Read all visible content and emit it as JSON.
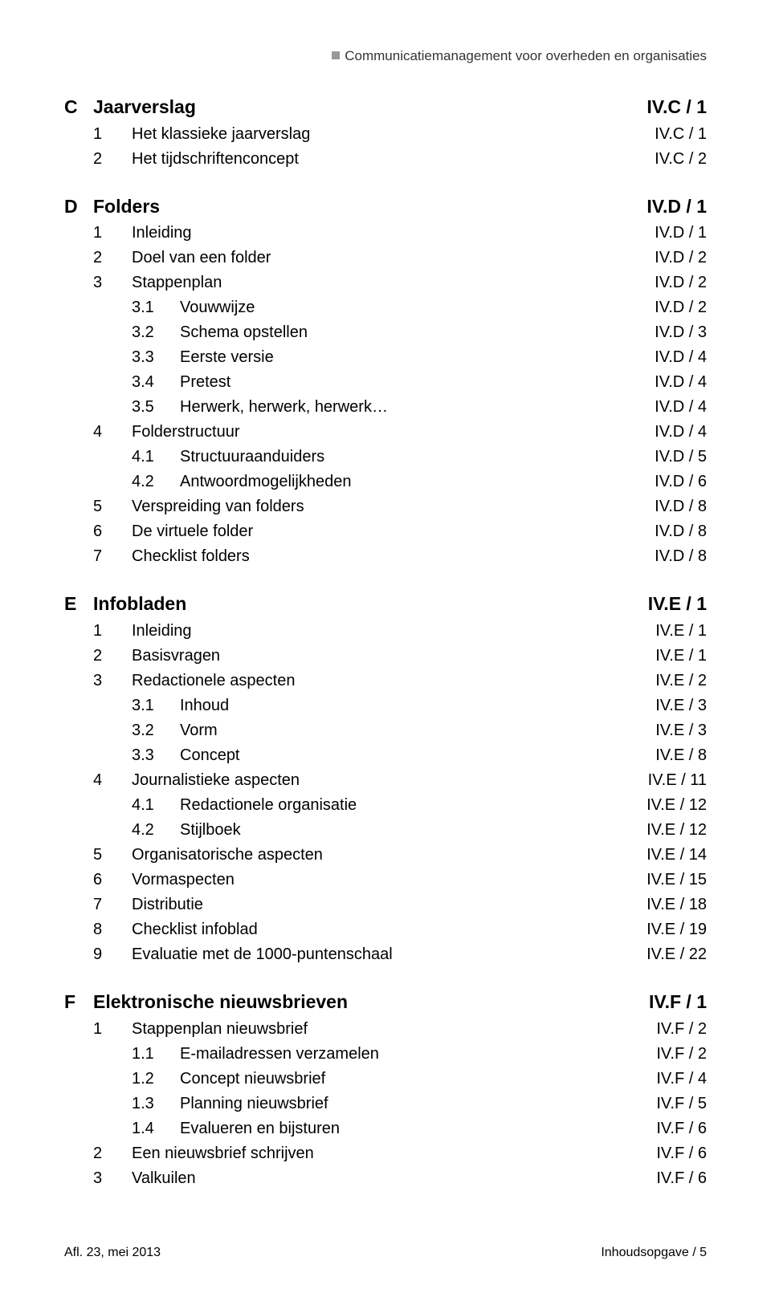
{
  "header": {
    "text": "Communicatiemanagement voor overheden en organisaties"
  },
  "sections": [
    {
      "letter": "C",
      "title": "Jaarverslag",
      "page": "IV.C / 1",
      "items": [
        {
          "n1": "1",
          "n2": "",
          "label": "Het klassieke jaarverslag",
          "page": "IV.C / 1"
        },
        {
          "n1": "2",
          "n2": "",
          "label": "Het tijdschriftenconcept",
          "page": "IV.C / 2"
        }
      ]
    },
    {
      "letter": "D",
      "title": "Folders",
      "page": "IV.D / 1",
      "items": [
        {
          "n1": "1",
          "n2": "",
          "label": "Inleiding",
          "page": "IV.D / 1"
        },
        {
          "n1": "2",
          "n2": "",
          "label": "Doel van een folder",
          "page": "IV.D / 2"
        },
        {
          "n1": "3",
          "n2": "",
          "label": "Stappenplan",
          "page": "IV.D / 2"
        },
        {
          "n1": "",
          "n2": "3.1",
          "label": "Vouwwijze",
          "page": "IV.D / 2"
        },
        {
          "n1": "",
          "n2": "3.2",
          "label": "Schema opstellen",
          "page": "IV.D / 3"
        },
        {
          "n1": "",
          "n2": "3.3",
          "label": "Eerste versie",
          "page": "IV.D / 4"
        },
        {
          "n1": "",
          "n2": "3.4",
          "label": "Pretest",
          "page": "IV.D / 4"
        },
        {
          "n1": "",
          "n2": "3.5",
          "label": "Herwerk, herwerk, herwerk…",
          "page": "IV.D / 4"
        },
        {
          "n1": "4",
          "n2": "",
          "label": "Folderstructuur",
          "page": "IV.D / 4"
        },
        {
          "n1": "",
          "n2": "4.1",
          "label": "Structuuraanduiders",
          "page": "IV.D / 5"
        },
        {
          "n1": "",
          "n2": "4.2",
          "label": "Antwoordmogelijkheden",
          "page": "IV.D / 6"
        },
        {
          "n1": "5",
          "n2": "",
          "label": "Verspreiding van folders",
          "page": "IV.D / 8"
        },
        {
          "n1": "6",
          "n2": "",
          "label": "De virtuele folder",
          "page": "IV.D / 8"
        },
        {
          "n1": "7",
          "n2": "",
          "label": "Checklist folders",
          "page": "IV.D / 8"
        }
      ]
    },
    {
      "letter": "E",
      "title": "Infobladen",
      "page": "IV.E / 1",
      "items": [
        {
          "n1": "1",
          "n2": "",
          "label": "Inleiding",
          "page": "IV.E / 1"
        },
        {
          "n1": "2",
          "n2": "",
          "label": "Basisvragen",
          "page": "IV.E / 1"
        },
        {
          "n1": "3",
          "n2": "",
          "label": "Redactionele aspecten",
          "page": "IV.E / 2"
        },
        {
          "n1": "",
          "n2": "3.1",
          "label": "Inhoud",
          "page": "IV.E / 3"
        },
        {
          "n1": "",
          "n2": "3.2",
          "label": "Vorm",
          "page": "IV.E / 3"
        },
        {
          "n1": "",
          "n2": "3.3",
          "label": "Concept",
          "page": "IV.E / 8"
        },
        {
          "n1": "4",
          "n2": "",
          "label": "Journalistieke aspecten",
          "page": "IV.E / 11"
        },
        {
          "n1": "",
          "n2": "4.1",
          "label": "Redactionele organisatie",
          "page": "IV.E / 12"
        },
        {
          "n1": "",
          "n2": "4.2",
          "label": "Stijlboek",
          "page": "IV.E / 12"
        },
        {
          "n1": "5",
          "n2": "",
          "label": "Organisatorische aspecten",
          "page": "IV.E / 14"
        },
        {
          "n1": "6",
          "n2": "",
          "label": "Vormaspecten",
          "page": "IV.E / 15"
        },
        {
          "n1": "7",
          "n2": "",
          "label": "Distributie",
          "page": "IV.E / 18"
        },
        {
          "n1": "8",
          "n2": "",
          "label": "Checklist infoblad",
          "page": "IV.E / 19"
        },
        {
          "n1": "9",
          "n2": "",
          "label": "Evaluatie met de 1000-puntenschaal",
          "page": "IV.E / 22"
        }
      ]
    },
    {
      "letter": "F",
      "title": "Elektronische nieuwsbrieven",
      "page": "IV.F / 1",
      "items": [
        {
          "n1": "1",
          "n2": "",
          "label": "Stappenplan nieuwsbrief",
          "page": "IV.F / 2"
        },
        {
          "n1": "",
          "n2": "1.1",
          "label": "E-mailadressen verzamelen",
          "page": "IV.F / 2"
        },
        {
          "n1": "",
          "n2": "1.2",
          "label": "Concept nieuwsbrief",
          "page": "IV.F / 4"
        },
        {
          "n1": "",
          "n2": "1.3",
          "label": "Planning nieuwsbrief",
          "page": "IV.F / 5"
        },
        {
          "n1": "",
          "n2": "1.4",
          "label": "Evalueren en bijsturen",
          "page": "IV.F / 6"
        },
        {
          "n1": "2",
          "n2": "",
          "label": "Een nieuwsbrief schrijven",
          "page": "IV.F / 6"
        },
        {
          "n1": "3",
          "n2": "",
          "label": "Valkuilen",
          "page": "IV.F / 6"
        }
      ]
    }
  ],
  "footer": {
    "left": "Afl. 23, mei 2013",
    "right": "Inhoudsopgave / 5"
  }
}
